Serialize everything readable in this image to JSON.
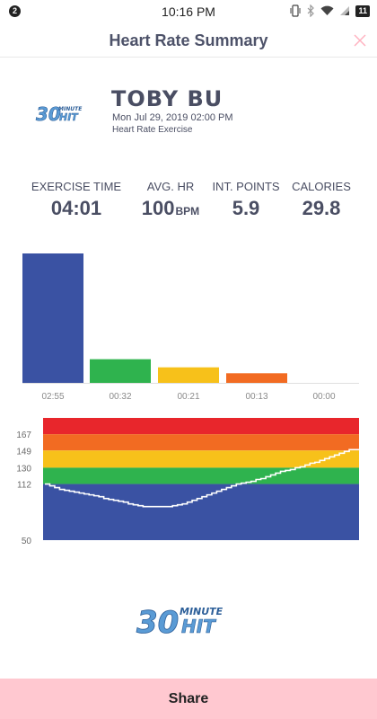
{
  "status_bar": {
    "notification_count": "2",
    "time": "10:16 PM",
    "battery": "11"
  },
  "header": {
    "title": "Heart Rate Summary"
  },
  "profile": {
    "name": "TOBY BU",
    "date": "Mon Jul 29, 2019 02:00 PM",
    "exercise_type": "Heart Rate Exercise"
  },
  "stats": [
    {
      "label": "EXERCISE TIME",
      "value": "04:01",
      "unit": ""
    },
    {
      "label": "AVG. HR",
      "value": "100",
      "unit": "BPM"
    },
    {
      "label": "INT. POINTS",
      "value": "5.9",
      "unit": ""
    },
    {
      "label": "CALORIES",
      "value": "29.8",
      "unit": ""
    }
  ],
  "zone_colors": [
    "#3a52a3",
    "#2fb34e",
    "#f7c11a",
    "#f26b22",
    "#e8262c"
  ],
  "chart_data": [
    {
      "type": "bar",
      "categories": [
        "02:55",
        "00:32",
        "00:21",
        "00:13",
        "00:00"
      ],
      "values": [
        175,
        32,
        21,
        13,
        0
      ],
      "colors": [
        "#3a52a3",
        "#2fb34e",
        "#f7c11a",
        "#f26b22",
        "#e8262c"
      ]
    },
    {
      "type": "line",
      "y_ticks": [
        "167",
        "149",
        "130",
        "112",
        "50"
      ],
      "zones": [
        {
          "from": 50,
          "to": 112,
          "color": "#3a52a3"
        },
        {
          "from": 112,
          "to": 130,
          "color": "#2fb34e"
        },
        {
          "from": 130,
          "to": 149,
          "color": "#f7c11a"
        },
        {
          "from": 149,
          "to": 167,
          "color": "#f26b22"
        },
        {
          "from": 167,
          "to": 185,
          "color": "#e8262c"
        }
      ],
      "ylim": [
        50,
        185
      ],
      "series": [
        {
          "values": [
            112,
            110,
            108,
            106,
            105,
            104,
            103,
            102,
            101,
            100,
            99,
            98,
            96,
            95,
            94,
            93,
            92,
            90,
            89,
            88,
            87,
            87,
            87,
            87,
            87,
            87,
            88,
            89,
            90,
            92,
            94,
            96,
            98,
            100,
            102,
            104,
            106,
            108,
            110,
            112,
            113,
            114,
            115,
            117,
            118,
            120,
            122,
            124,
            126,
            127,
            128,
            130,
            131,
            133,
            135,
            136,
            138,
            140,
            142,
            144,
            146,
            148,
            150,
            150,
            150
          ]
        }
      ]
    }
  ],
  "share": {
    "label": "Share"
  },
  "brand": {
    "logo": "30 MINUTE HIT"
  }
}
